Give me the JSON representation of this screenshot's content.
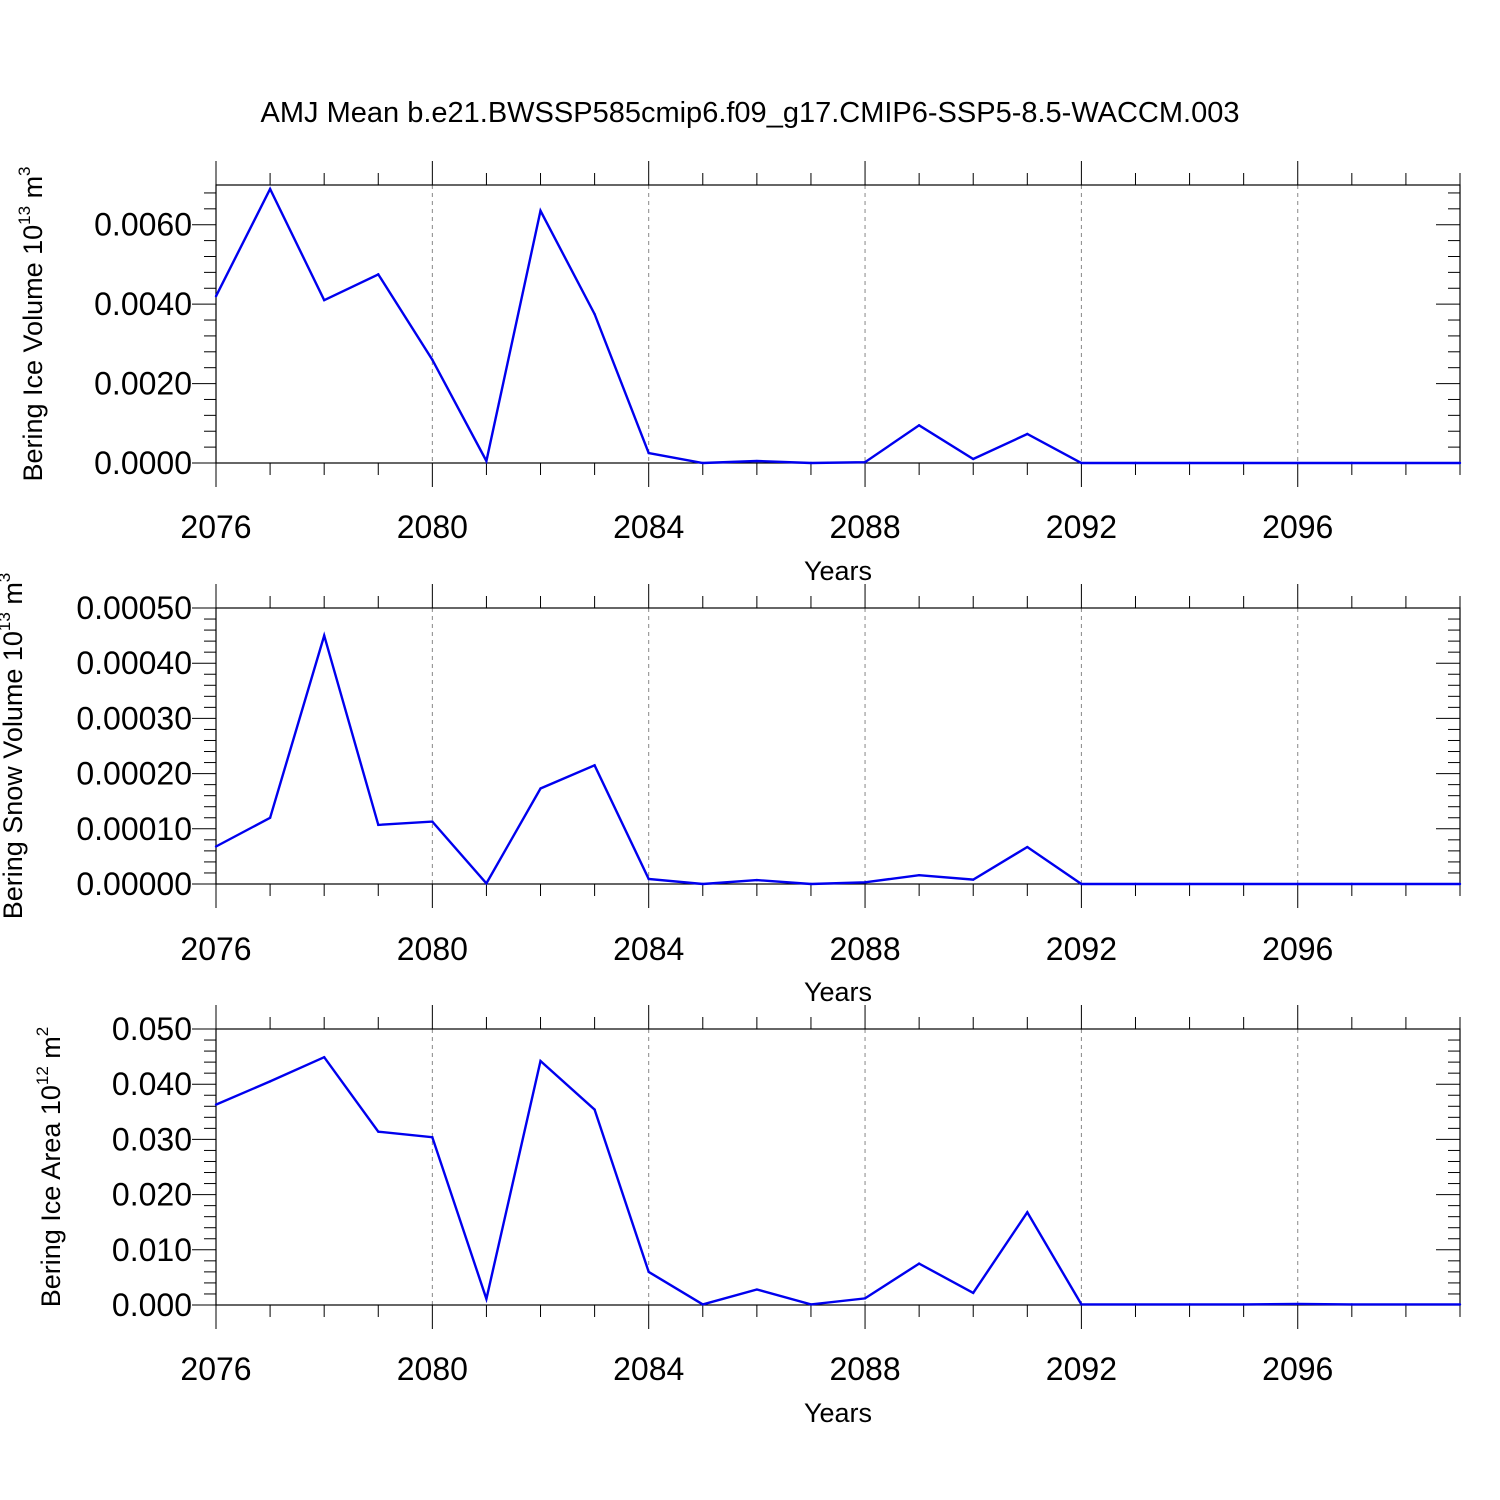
{
  "title": "AMJ Mean b.e21.BWSSP585cmip6.f09_g17.CMIP6-SSP5-8.5-WACCM.003",
  "colors": {
    "line": "#0000ee",
    "axis": "#000000",
    "grid": "#888888"
  },
  "chart_data": [
    {
      "type": "line",
      "ylabel_main": "Bering Ice Volume 10",
      "ylabel_exp": "13",
      "ylabel_unit": " m",
      "ylabel_unit_exp": "3",
      "xlabel": "Years",
      "xlim": [
        2076,
        2099
      ],
      "ylim": [
        0,
        0.007
      ],
      "xticks": [
        "2076",
        "2080",
        "2084",
        "2088",
        "2092",
        "2096"
      ],
      "yticks": [
        "0.0000",
        "0.0020",
        "0.0040",
        "0.0060"
      ],
      "ytick_values": [
        0,
        0.002,
        0.004,
        0.006
      ],
      "x": [
        2076,
        2077,
        2078,
        2079,
        2080,
        2081,
        2082,
        2083,
        2084,
        2085,
        2086,
        2087,
        2088,
        2089,
        2090,
        2091,
        2092,
        2093,
        2094,
        2095,
        2096,
        2097,
        2098,
        2099
      ],
      "values": [
        0.0042,
        0.0069,
        0.0041,
        0.00475,
        0.0026,
        5e-05,
        0.00635,
        0.00375,
        0.00025,
        0.0,
        5e-05,
        0.0,
        2e-05,
        0.00095,
        0.0001,
        0.00073,
        0.0,
        0.0,
        0.0,
        0.0,
        0.0,
        0.0,
        0.0,
        0.0
      ]
    },
    {
      "type": "line",
      "ylabel_main": "Bering Snow Volume 10",
      "ylabel_exp": "13",
      "ylabel_unit": " m",
      "ylabel_unit_exp": "3",
      "xlabel": "Years",
      "xlim": [
        2076,
        2099
      ],
      "ylim": [
        0,
        0.0005
      ],
      "xticks": [
        "2076",
        "2080",
        "2084",
        "2088",
        "2092",
        "2096"
      ],
      "yticks": [
        "0.00000",
        "0.00010",
        "0.00020",
        "0.00030",
        "0.00040",
        "0.00050"
      ],
      "ytick_values": [
        0,
        0.0001,
        0.0002,
        0.0003,
        0.0004,
        0.0005
      ],
      "x": [
        2076,
        2077,
        2078,
        2079,
        2080,
        2081,
        2082,
        2083,
        2084,
        2085,
        2086,
        2087,
        2088,
        2089,
        2090,
        2091,
        2092,
        2093,
        2094,
        2095,
        2096,
        2097,
        2098,
        2099
      ],
      "values": [
        6.8e-05,
        0.00012,
        0.00045,
        0.000107,
        0.000113,
        1e-06,
        0.000173,
        0.000215,
        9e-06,
        0.0,
        7e-06,
        0.0,
        3e-06,
        1.6e-05,
        8e-06,
        6.7e-05,
        0.0,
        0.0,
        0.0,
        0.0,
        0.0,
        0.0,
        0.0,
        0.0
      ]
    },
    {
      "type": "line",
      "ylabel_main": "Bering Ice Area 10",
      "ylabel_exp": "12",
      "ylabel_unit": " m",
      "ylabel_unit_exp": "2",
      "xlabel": "Years",
      "xlim": [
        2076,
        2099
      ],
      "ylim": [
        0,
        0.05
      ],
      "xticks": [
        "2076",
        "2080",
        "2084",
        "2088",
        "2092",
        "2096"
      ],
      "yticks": [
        "0.000",
        "0.010",
        "0.020",
        "0.030",
        "0.040",
        "0.050"
      ],
      "ytick_values": [
        0,
        0.01,
        0.02,
        0.03,
        0.04,
        0.05
      ],
      "x": [
        2076,
        2077,
        2078,
        2079,
        2080,
        2081,
        2082,
        2083,
        2084,
        2085,
        2086,
        2087,
        2088,
        2089,
        2090,
        2091,
        2092,
        2093,
        2094,
        2095,
        2096,
        2097,
        2098,
        2099
      ],
      "values": [
        0.0363,
        0.0405,
        0.0449,
        0.0314,
        0.0304,
        0.0011,
        0.0442,
        0.0354,
        0.006,
        0.0001,
        0.0028,
        0.0001,
        0.0012,
        0.0075,
        0.0022,
        0.0168,
        0.0001,
        0.0001,
        0.0001,
        0.0001,
        0.0002,
        0.0001,
        0.0001,
        0.0001
      ]
    }
  ]
}
